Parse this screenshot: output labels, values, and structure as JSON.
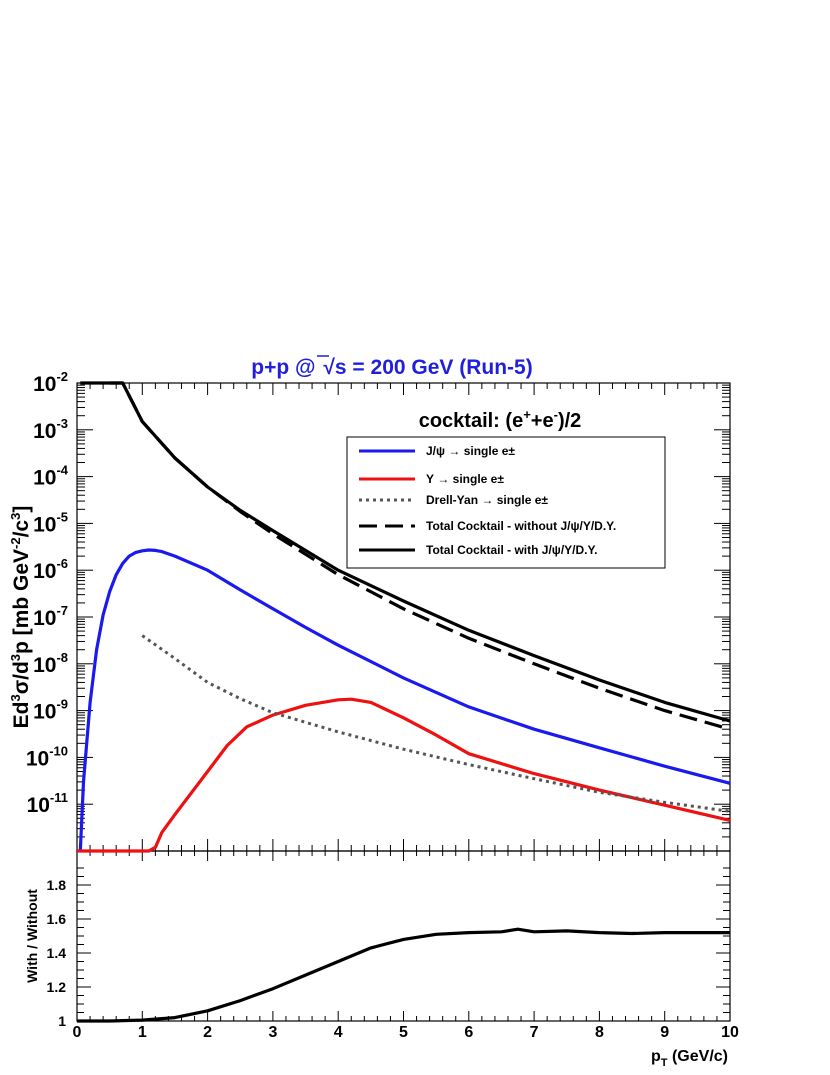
{
  "chart_data": [
    {
      "type": "line",
      "title_prefix": "p+p @ ",
      "title_root": "s",
      "title_suffix": " = 200 GeV (Run-5)",
      "annotation_prefix": "cocktail: (e",
      "annotation_mid": "+e",
      "annotation_suffix": ")/2",
      "annotation_sup1": "+",
      "annotation_sup2": "-",
      "ylabel_parts": [
        "Ed",
        "3",
        "σ/d",
        "3",
        "p [mb GeV",
        "-2",
        "/c",
        "3",
        "]"
      ],
      "xlim": [
        0,
        10
      ],
      "ylim": [
        1e-12,
        0.01
      ],
      "yscale": "log",
      "x_ticks": [
        "0",
        "1",
        "2",
        "3",
        "4",
        "5",
        "6",
        "7",
        "8",
        "9",
        "10"
      ],
      "y_ticks": [
        {
          "base": "10",
          "exp": "-11",
          "value": 1e-11
        },
        {
          "base": "10",
          "exp": "-10",
          "value": 1e-10
        },
        {
          "base": "10",
          "exp": "-9",
          "value": 1e-09
        },
        {
          "base": "10",
          "exp": "-8",
          "value": 1e-08
        },
        {
          "base": "10",
          "exp": "-7",
          "value": 1e-07
        },
        {
          "base": "10",
          "exp": "-6",
          "value": 1e-06
        },
        {
          "base": "10",
          "exp": "-5",
          "value": 1e-05
        },
        {
          "base": "10",
          "exp": "-4",
          "value": 0.0001
        },
        {
          "base": "10",
          "exp": "-3",
          "value": 0.001
        },
        {
          "base": "10",
          "exp": "-2",
          "value": 0.01
        }
      ],
      "legend_position": "top-right",
      "series": [
        {
          "name": "J/ψ → single e±",
          "color": "#1a1aee",
          "style": "solid",
          "x": [
            0.05,
            0.1,
            0.2,
            0.3,
            0.4,
            0.5,
            0.6,
            0.7,
            0.8,
            0.9,
            1.0,
            1.1,
            1.2,
            1.3,
            1.5,
            2.0,
            2.5,
            3.0,
            3.5,
            4.0,
            5.0,
            6.0,
            7.0,
            8.0,
            9.0,
            10.0
          ],
          "y": [
            1e-12,
            3e-11,
            1.5e-09,
            2e-08,
            1.1e-07,
            3.5e-07,
            8e-07,
            1.4e-06,
            2e-06,
            2.4e-06,
            2.6e-06,
            2.7e-06,
            2.65e-06,
            2.5e-06,
            2e-06,
            1e-06,
            3.8e-07,
            1.5e-07,
            6e-08,
            2.5e-08,
            5e-09,
            1.2e-09,
            4e-10,
            1.6e-10,
            6.5e-11,
            2.8e-11
          ]
        },
        {
          "name": "Υ → single e±",
          "color": "#ee1111",
          "style": "solid",
          "x": [
            0,
            0.5,
            1.0,
            1.1,
            1.2,
            1.3,
            1.5,
            2.0,
            2.3,
            2.6,
            3.0,
            3.5,
            4.0,
            4.2,
            4.5,
            5.0,
            5.5,
            6.0,
            7.0,
            8.0,
            9.0,
            10.0
          ],
          "y": [
            1e-12,
            1e-12,
            1e-12,
            1e-12,
            1.2e-12,
            2.5e-12,
            6e-12,
            5e-11,
            1.8e-10,
            4.5e-10,
            8e-10,
            1.3e-09,
            1.7e-09,
            1.75e-09,
            1.5e-09,
            7e-10,
            3e-10,
            1.2e-10,
            4.5e-11,
            2e-11,
            9.5e-12,
            4.5e-12
          ]
        },
        {
          "name": "Drell-Yan → single e±",
          "color": "#555555",
          "style": "dotted",
          "x": [
            1.0,
            1.5,
            2.0,
            2.5,
            3.0,
            4.0,
            5.0,
            6.0,
            7.0,
            8.0,
            9.0,
            10.0
          ],
          "y": [
            4e-08,
            1.3e-08,
            4e-09,
            1.8e-09,
            9e-10,
            3.5e-10,
            1.5e-10,
            7e-11,
            3.5e-11,
            1.8e-11,
            1.1e-11,
            7e-12
          ]
        },
        {
          "name": "Total Cocktail - without J/ψ/Υ/D.Y.",
          "color": "#000000",
          "style": "dashed",
          "x": [
            0.5,
            0.7,
            1.0,
            1.5,
            2.0,
            2.5,
            3.0,
            4.0,
            5.0,
            6.0,
            7.0,
            8.0,
            9.0,
            10.0
          ],
          "y": [
            0.01,
            0.01,
            0.0015,
            0.00025,
            6e-05,
            1.8e-05,
            6e-06,
            8e-07,
            1.5e-07,
            3.5e-08,
            1e-08,
            3e-09,
            1e-09,
            4e-10
          ]
        },
        {
          "name": "Total Cocktail - with J/ψ/Υ/D.Y.",
          "color": "#000000",
          "style": "solid",
          "x": [
            0.05,
            0.7,
            1.0,
            1.5,
            2.0,
            2.5,
            3.0,
            4.0,
            5.0,
            6.0,
            7.0,
            8.0,
            9.0,
            10.0
          ],
          "y": [
            0.01,
            0.01,
            0.0015,
            0.00025,
            6e-05,
            1.9e-05,
            7e-06,
            1e-06,
            2.2e-07,
            5.2e-08,
            1.5e-08,
            4.5e-09,
            1.5e-09,
            6e-10
          ]
        }
      ]
    },
    {
      "type": "line",
      "ylabel": "With / Without",
      "xlabel_main": "p",
      "xlabel_sub": "T",
      "xlabel_suffix": " (GeV/c)",
      "xlim": [
        0,
        10
      ],
      "ylim": [
        1,
        2
      ],
      "x_ticks": [
        "0",
        "1",
        "2",
        "3",
        "4",
        "5",
        "6",
        "7",
        "8",
        "9",
        "10"
      ],
      "y_ticks": [
        "1",
        "1.2",
        "1.4",
        "1.6",
        "1.8"
      ],
      "series": [
        {
          "color": "#000000",
          "x": [
            0,
            0.5,
            1.0,
            1.5,
            2.0,
            2.5,
            3.0,
            3.5,
            4.0,
            4.5,
            5.0,
            5.5,
            6.0,
            6.5,
            6.75,
            7.0,
            7.5,
            8.0,
            8.5,
            9.0,
            9.5,
            10.0
          ],
          "y": [
            1.0,
            1.0,
            1.005,
            1.02,
            1.06,
            1.12,
            1.19,
            1.27,
            1.35,
            1.43,
            1.48,
            1.51,
            1.52,
            1.525,
            1.54,
            1.525,
            1.53,
            1.52,
            1.515,
            1.52,
            1.52,
            1.52
          ]
        }
      ]
    }
  ]
}
